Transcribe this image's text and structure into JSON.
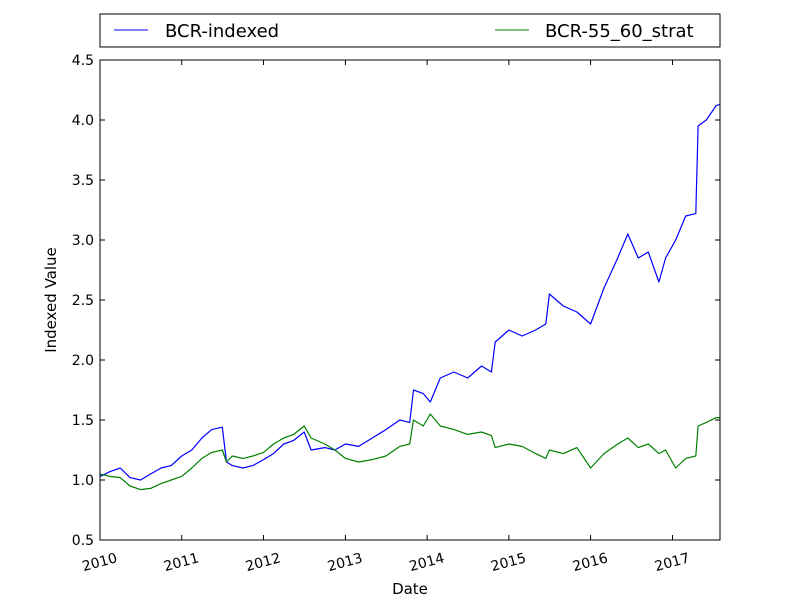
{
  "chart_data": {
    "type": "line",
    "xlabel": "Date",
    "ylabel": "Indexed Value",
    "xlim": [
      "2010-01-01",
      "2017-08-01"
    ],
    "ylim": [
      0.5,
      4.5
    ],
    "y_ticks": [
      "0.5",
      "1.0",
      "1.5",
      "2.0",
      "2.5",
      "3.0",
      "3.5",
      "4.0",
      "4.5"
    ],
    "x_ticks": [
      "2010",
      "2011",
      "2012",
      "2013",
      "2014",
      "2015",
      "2016",
      "2017"
    ],
    "grid": false,
    "legend_position": "top, above plot",
    "series": [
      {
        "name": "BCR-indexed",
        "color": "#0000ff",
        "points": [
          [
            "2010-01-01",
            1.03
          ],
          [
            "2010-02-15",
            1.07
          ],
          [
            "2010-04-01",
            1.1
          ],
          [
            "2010-05-15",
            1.02
          ],
          [
            "2010-07-01",
            1.0
          ],
          [
            "2010-08-15",
            1.05
          ],
          [
            "2010-10-01",
            1.1
          ],
          [
            "2010-11-15",
            1.12
          ],
          [
            "2011-01-01",
            1.2
          ],
          [
            "2011-02-15",
            1.25
          ],
          [
            "2011-04-01",
            1.35
          ],
          [
            "2011-05-15",
            1.42
          ],
          [
            "2011-07-01",
            1.44
          ],
          [
            "2011-07-20",
            1.15
          ],
          [
            "2011-08-15",
            1.12
          ],
          [
            "2011-10-01",
            1.1
          ],
          [
            "2011-11-15",
            1.12
          ],
          [
            "2012-01-01",
            1.17
          ],
          [
            "2012-02-15",
            1.22
          ],
          [
            "2012-04-01",
            1.3
          ],
          [
            "2012-05-15",
            1.33
          ],
          [
            "2012-07-01",
            1.4
          ],
          [
            "2012-08-01",
            1.25
          ],
          [
            "2012-10-01",
            1.27
          ],
          [
            "2012-11-15",
            1.25
          ],
          [
            "2013-01-01",
            1.3
          ],
          [
            "2013-03-01",
            1.28
          ],
          [
            "2013-05-01",
            1.35
          ],
          [
            "2013-07-01",
            1.42
          ],
          [
            "2013-09-01",
            1.5
          ],
          [
            "2013-10-15",
            1.48
          ],
          [
            "2013-11-01",
            1.75
          ],
          [
            "2013-12-15",
            1.72
          ],
          [
            "2014-01-15",
            1.65
          ],
          [
            "2014-03-01",
            1.85
          ],
          [
            "2014-05-01",
            1.9
          ],
          [
            "2014-07-01",
            1.85
          ],
          [
            "2014-09-01",
            1.95
          ],
          [
            "2014-10-15",
            1.9
          ],
          [
            "2014-11-01",
            2.15
          ],
          [
            "2015-01-01",
            2.25
          ],
          [
            "2015-03-01",
            2.2
          ],
          [
            "2015-05-01",
            2.25
          ],
          [
            "2015-06-15",
            2.3
          ],
          [
            "2015-07-01",
            2.55
          ],
          [
            "2015-09-01",
            2.45
          ],
          [
            "2015-11-01",
            2.4
          ],
          [
            "2016-01-01",
            2.3
          ],
          [
            "2016-03-01",
            2.6
          ],
          [
            "2016-05-01",
            2.85
          ],
          [
            "2016-06-15",
            3.05
          ],
          [
            "2016-08-01",
            2.85
          ],
          [
            "2016-09-15",
            2.9
          ],
          [
            "2016-11-01",
            2.65
          ],
          [
            "2016-12-01",
            2.85
          ],
          [
            "2017-01-15",
            3.0
          ],
          [
            "2017-03-01",
            3.2
          ],
          [
            "2017-04-15",
            3.22
          ],
          [
            "2017-04-25",
            3.95
          ],
          [
            "2017-06-01",
            4.0
          ],
          [
            "2017-07-15",
            4.12
          ],
          [
            "2017-08-01",
            4.13
          ]
        ]
      },
      {
        "name": "BCR-55_60_strat",
        "color": "#008000",
        "points": [
          [
            "2010-01-01",
            1.05
          ],
          [
            "2010-02-15",
            1.03
          ],
          [
            "2010-04-01",
            1.02
          ],
          [
            "2010-05-15",
            0.95
          ],
          [
            "2010-07-01",
            0.92
          ],
          [
            "2010-08-15",
            0.93
          ],
          [
            "2010-10-01",
            0.97
          ],
          [
            "2010-11-15",
            1.0
          ],
          [
            "2011-01-01",
            1.03
          ],
          [
            "2011-02-15",
            1.1
          ],
          [
            "2011-04-01",
            1.18
          ],
          [
            "2011-05-15",
            1.23
          ],
          [
            "2011-07-01",
            1.25
          ],
          [
            "2011-07-20",
            1.15
          ],
          [
            "2011-08-15",
            1.2
          ],
          [
            "2011-10-01",
            1.18
          ],
          [
            "2011-11-15",
            1.2
          ],
          [
            "2012-01-01",
            1.23
          ],
          [
            "2012-02-15",
            1.3
          ],
          [
            "2012-04-01",
            1.35
          ],
          [
            "2012-05-15",
            1.38
          ],
          [
            "2012-07-01",
            1.45
          ],
          [
            "2012-08-01",
            1.35
          ],
          [
            "2012-10-01",
            1.3
          ],
          [
            "2012-11-15",
            1.25
          ],
          [
            "2013-01-01",
            1.18
          ],
          [
            "2013-03-01",
            1.15
          ],
          [
            "2013-05-01",
            1.17
          ],
          [
            "2013-07-01",
            1.2
          ],
          [
            "2013-09-01",
            1.28
          ],
          [
            "2013-10-15",
            1.3
          ],
          [
            "2013-11-01",
            1.5
          ],
          [
            "2013-12-15",
            1.45
          ],
          [
            "2014-01-15",
            1.55
          ],
          [
            "2014-03-01",
            1.45
          ],
          [
            "2014-05-01",
            1.42
          ],
          [
            "2014-07-01",
            1.38
          ],
          [
            "2014-09-01",
            1.4
          ],
          [
            "2014-10-15",
            1.37
          ],
          [
            "2014-11-01",
            1.27
          ],
          [
            "2015-01-01",
            1.3
          ],
          [
            "2015-03-01",
            1.28
          ],
          [
            "2015-05-01",
            1.22
          ],
          [
            "2015-06-15",
            1.18
          ],
          [
            "2015-07-01",
            1.25
          ],
          [
            "2015-09-01",
            1.22
          ],
          [
            "2015-11-01",
            1.27
          ],
          [
            "2016-01-01",
            1.1
          ],
          [
            "2016-03-01",
            1.22
          ],
          [
            "2016-05-01",
            1.3
          ],
          [
            "2016-06-15",
            1.35
          ],
          [
            "2016-08-01",
            1.27
          ],
          [
            "2016-09-15",
            1.3
          ],
          [
            "2016-11-01",
            1.22
          ],
          [
            "2016-12-01",
            1.25
          ],
          [
            "2017-01-15",
            1.1
          ],
          [
            "2017-03-01",
            1.18
          ],
          [
            "2017-04-15",
            1.2
          ],
          [
            "2017-04-25",
            1.45
          ],
          [
            "2017-06-01",
            1.48
          ],
          [
            "2017-07-15",
            1.52
          ],
          [
            "2017-08-01",
            1.52
          ]
        ]
      }
    ]
  }
}
